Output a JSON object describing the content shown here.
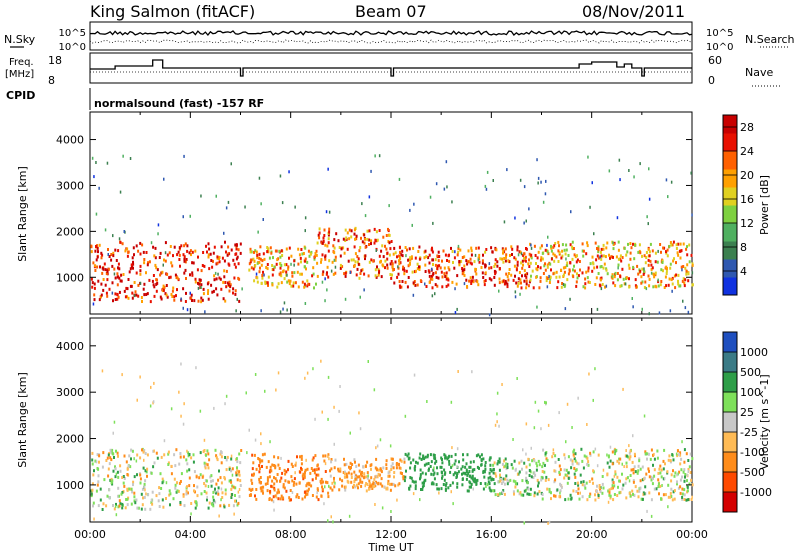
{
  "header": {
    "station": "King Salmon (fitACF)",
    "beam": "Beam 07",
    "date": "08/Nov/2011",
    "nsky_label": "N.Sky",
    "nsearch_label": "N.Search",
    "freq_label_line1": "Freq.",
    "freq_label_line2": "[MHz]",
    "nave_label": "Nave",
    "cpid_label": "CPID",
    "cpid_text": "normalsound (fast) -157 RF",
    "noise_left_ticks": [
      "10^5",
      "10^0"
    ],
    "noise_right_ticks": [
      "10^5",
      "10^0"
    ],
    "freq_ticks": [
      "18",
      "8"
    ],
    "nave_ticks": [
      "60",
      "0"
    ]
  },
  "colors": {
    "velocity_scale": [
      "#d40000",
      "#ff4a00",
      "#ff8c1a",
      "#ffbb55",
      "#c8c8c8",
      "#7ee05a",
      "#2e9e48",
      "#3b7b86",
      "#1f4fbf"
    ],
    "power_scale": [
      "#1032e0",
      "#2f58b0",
      "#3c8050",
      "#4fb060",
      "#7ed040",
      "#e0d020",
      "#ffa000",
      "#ff6000",
      "#e81000",
      "#c80000"
    ]
  },
  "chart_data": [
    {
      "type": "heatmap",
      "title": "Power",
      "xlabel": "Time UT",
      "ylabel": "Slant Range [km]",
      "x_ticks": [
        "00:00",
        "04:00",
        "08:00",
        "12:00",
        "16:00",
        "20:00",
        "00:00"
      ],
      "y_ticks": [
        1000,
        2000,
        3000,
        4000
      ],
      "ylim": [
        200,
        4600
      ],
      "xlim": [
        "00:00",
        "24:00"
      ],
      "colorbar_label": "Power [dB]",
      "colorbar_ticks": [
        4,
        8,
        12,
        16,
        20,
        24,
        28
      ],
      "colorbar_range": [
        0,
        30
      ],
      "scatter_regions": [
        {
          "t0": 0.0,
          "t1": 6.0,
          "r0": 500,
          "r1": 1800,
          "value": 26
        },
        {
          "t0": 6.3,
          "t1": 9.0,
          "r0": 800,
          "r1": 1700,
          "value": 20
        },
        {
          "t0": 9.0,
          "t1": 12.0,
          "r0": 1000,
          "r1": 2100,
          "value": 22
        },
        {
          "t0": 12.0,
          "t1": 17.5,
          "r0": 800,
          "r1": 1700,
          "value": 24
        },
        {
          "t0": 17.5,
          "t1": 24.0,
          "r0": 800,
          "r1": 1800,
          "value": 20
        }
      ]
    },
    {
      "type": "heatmap",
      "title": "Velocity",
      "xlabel": "Time UT",
      "ylabel": "Slant Range [km]",
      "x_ticks": [
        "00:00",
        "04:00",
        "08:00",
        "12:00",
        "16:00",
        "20:00",
        "00:00"
      ],
      "y_ticks": [
        1000,
        2000,
        3000,
        4000
      ],
      "ylim": [
        200,
        4600
      ],
      "xlim": [
        "00:00",
        "24:00"
      ],
      "colorbar_label": "Velocity [m s^-1]",
      "colorbar_ticks": [
        "1000",
        "500",
        "100",
        "25",
        "-25",
        "-100",
        "-500",
        "-1000"
      ],
      "scatter_regions": [
        {
          "t0": 0.0,
          "t1": 6.0,
          "r0": 500,
          "r1": 1800,
          "value": 0
        },
        {
          "t0": 6.3,
          "t1": 9.5,
          "r0": 700,
          "r1": 1700,
          "value": -400
        },
        {
          "t0": 9.5,
          "t1": 12.5,
          "r0": 900,
          "r1": 1600,
          "value": -150
        },
        {
          "t0": 12.5,
          "t1": 16.0,
          "r0": 900,
          "r1": 1700,
          "value": 300
        },
        {
          "t0": 16.0,
          "t1": 18.0,
          "r0": 800,
          "r1": 1600,
          "value": 80
        },
        {
          "t0": 18.0,
          "t1": 24.0,
          "r0": 700,
          "r1": 1800,
          "value": 0
        }
      ]
    }
  ]
}
